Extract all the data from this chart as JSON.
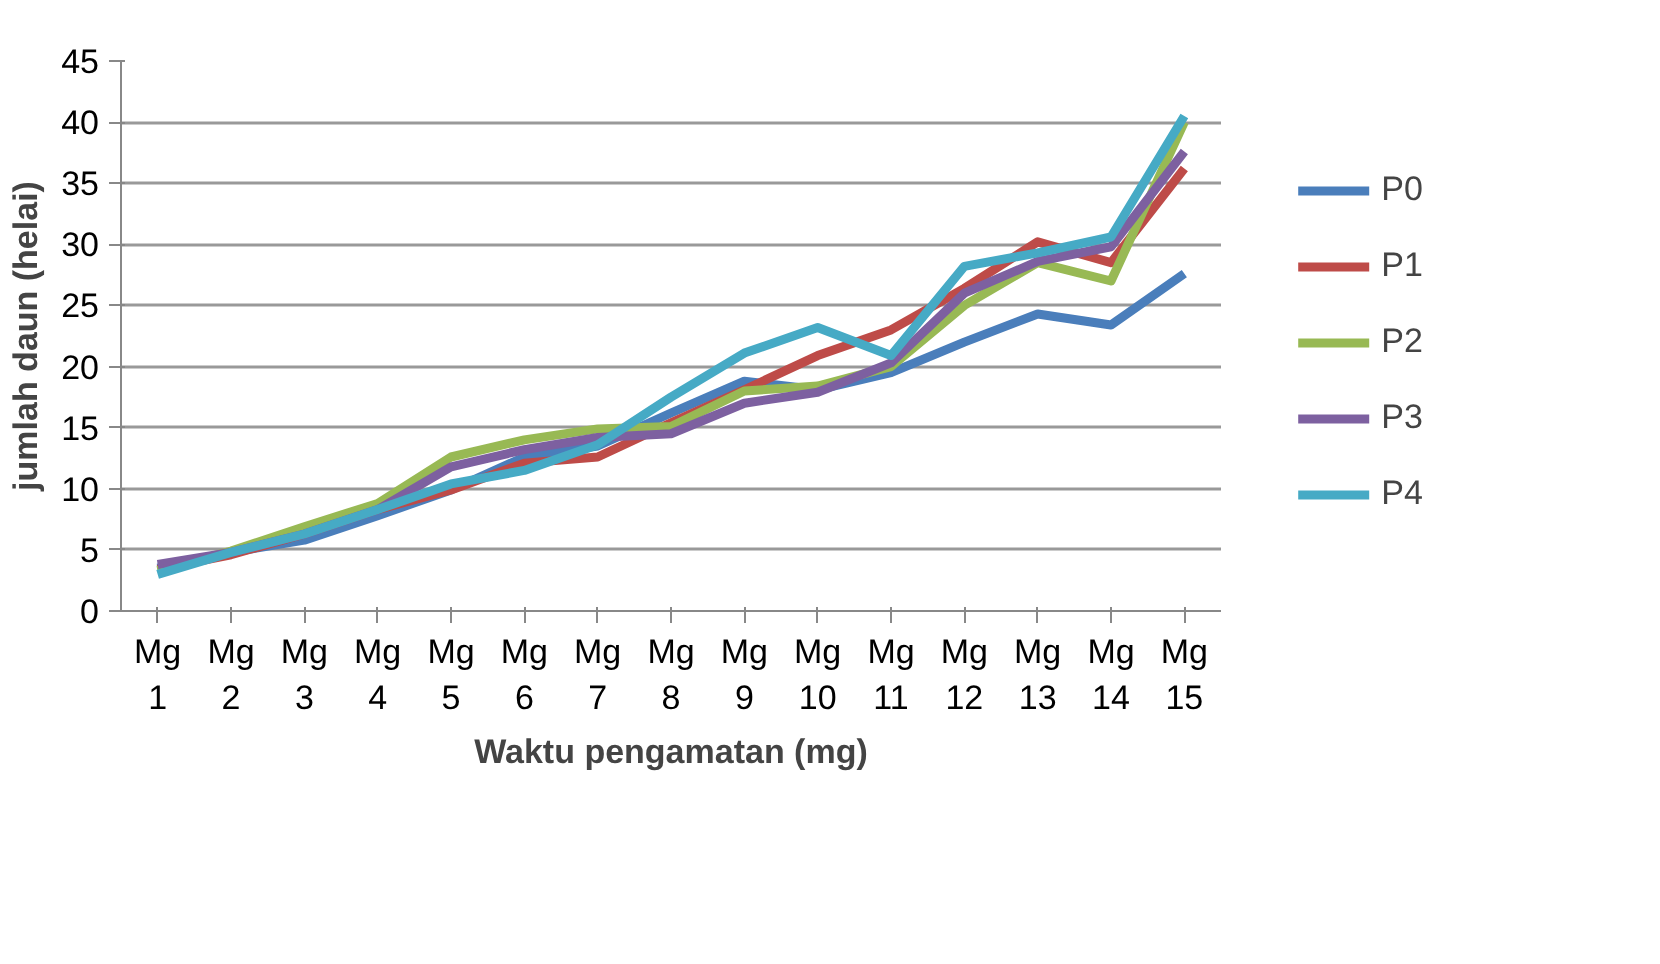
{
  "chart_data": {
    "type": "line",
    "xlabel": "Waktu pengamatan (mg)",
    "ylabel": "jumlah daun (helai)",
    "categories": [
      "Mg 1",
      "Mg 2",
      "Mg 3",
      "Mg 4",
      "Mg 5",
      "Mg 6",
      "Mg 7",
      "Mg 8",
      "Mg 9",
      "Mg 10",
      "Mg 11",
      "Mg 12",
      "Mg 13",
      "Mg 14",
      "Mg 15"
    ],
    "series": [
      {
        "name": "P0",
        "color": "#4a7ebb",
        "values": [
          3.5,
          4.8,
          5.8,
          7.8,
          9.9,
          12.6,
          13.5,
          16.2,
          18.8,
          18.1,
          19.5,
          22,
          24.3,
          23.4,
          27.6
        ]
      },
      {
        "name": "P1",
        "color": "#be4b48",
        "values": [
          3.4,
          4.6,
          6.3,
          8.3,
          9.9,
          12.1,
          12.6,
          15.4,
          18.1,
          20.9,
          23,
          26.4,
          30.2,
          28.5,
          36.2
        ]
      },
      {
        "name": "P2",
        "color": "#98b954",
        "values": [
          3.3,
          4.9,
          6.9,
          8.8,
          12.6,
          14,
          14.9,
          15.1,
          18,
          18.4,
          20,
          25,
          28.5,
          27,
          40
        ]
      },
      {
        "name": "P3",
        "color": "#7d60a0",
        "values": [
          3.8,
          4.8,
          6.3,
          8.3,
          11.8,
          13.2,
          14.2,
          14.5,
          17,
          17.9,
          20.3,
          26,
          28.6,
          29.8,
          37.6
        ]
      },
      {
        "name": "P4",
        "color": "#46aac5",
        "values": [
          3.0,
          4.8,
          6.3,
          8.3,
          10.4,
          11.5,
          13.6,
          17.5,
          21.1,
          23.2,
          20.9,
          28.2,
          29.3,
          30.6,
          40.5
        ]
      }
    ],
    "ylim": [
      0,
      45
    ],
    "yticks": [
      0,
      5,
      10,
      15,
      20,
      25,
      30,
      35,
      40,
      45
    ],
    "grid": "y",
    "legend": "right",
    "line_style": "solid"
  }
}
